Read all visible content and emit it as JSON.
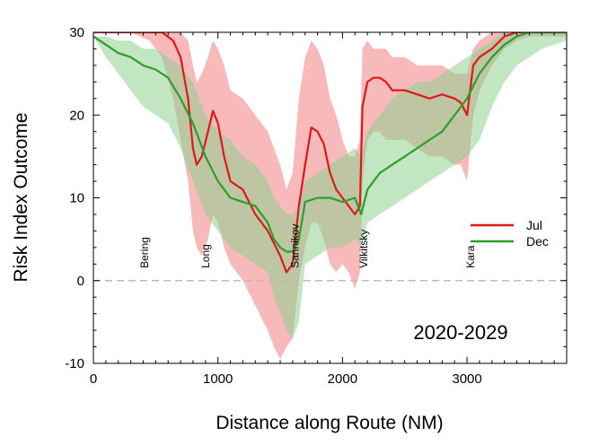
{
  "chart_data": {
    "type": "line",
    "xlabel": "Distance along Route (NM)",
    "ylabel": "Risk Index Outcome",
    "xlim": [
      0,
      3800
    ],
    "ylim": [
      -10,
      30
    ],
    "xticks": [
      0,
      1000,
      2000,
      3000
    ],
    "yticks": [
      -10,
      0,
      10,
      20,
      30
    ],
    "grid": false,
    "legend_position": "right",
    "annotation": "2020-2029",
    "reference_line": {
      "y": 0,
      "style": "dashed",
      "color": "#bbbbbb"
    },
    "places": [
      {
        "name": "Bering",
        "x": 410
      },
      {
        "name": "Long",
        "x": 900
      },
      {
        "name": "Sannikov",
        "x": 1620
      },
      {
        "name": "Vilkitsky",
        "x": 2170
      },
      {
        "name": "Kara",
        "x": 3030
      }
    ],
    "series": [
      {
        "name": "Jul",
        "color": "#dd1a1a",
        "band_color": "#f08080",
        "x": [
          0,
          300,
          450,
          550,
          640,
          700,
          760,
          800,
          830,
          870,
          920,
          960,
          1000,
          1050,
          1100,
          1200,
          1300,
          1400,
          1450,
          1500,
          1550,
          1600,
          1650,
          1700,
          1750,
          1800,
          1850,
          1900,
          1950,
          2000,
          2050,
          2100,
          2140,
          2160,
          2200,
          2250,
          2300,
          2350,
          2400,
          2500,
          2600,
          2700,
          2800,
          2900,
          2950,
          3000,
          3050,
          3100,
          3200,
          3300,
          3400,
          3500,
          3600,
          3700,
          3800
        ],
        "values": [
          30,
          30,
          30,
          30,
          29,
          27,
          22,
          16,
          14,
          15,
          18,
          20.5,
          19,
          15,
          12,
          11,
          8,
          6,
          4.5,
          3,
          1,
          2,
          9,
          14,
          18.5,
          18,
          16.5,
          13,
          11,
          10,
          9,
          8,
          9,
          21,
          24,
          24.5,
          24.5,
          24,
          23,
          23,
          22.5,
          22,
          22.5,
          22,
          21.5,
          20,
          26,
          27,
          28,
          29.5,
          30,
          30,
          30,
          30,
          30
        ],
        "upper": [
          30,
          30,
          30,
          30,
          30,
          30,
          29,
          26,
          24,
          25,
          27,
          29,
          28,
          26,
          23,
          22,
          20,
          18,
          16,
          14,
          11,
          13,
          22,
          27,
          29,
          28,
          26,
          22,
          20,
          17,
          15,
          15,
          17,
          28,
          29,
          28,
          28,
          28,
          27,
          27,
          26,
          26,
          26,
          25,
          25,
          25,
          28,
          29,
          30,
          30,
          30,
          30,
          30,
          30,
          30
        ],
        "lower": [
          30,
          30,
          29,
          27,
          22,
          17,
          12,
          6,
          4,
          3,
          5,
          8,
          7,
          4,
          2,
          0,
          -3,
          -6,
          -8,
          -9.5,
          -8,
          -7,
          0,
          4,
          7,
          7,
          5,
          2,
          1,
          2,
          1,
          -1,
          1,
          12,
          17,
          18,
          18,
          17,
          17,
          17,
          16,
          15,
          15,
          14,
          14,
          12,
          20,
          23,
          26,
          28,
          29,
          29.5,
          29.5,
          29.5,
          29.5
        ]
      },
      {
        "name": "Dec",
        "color": "#2aa02a",
        "band_color": "#8fd08f",
        "x": [
          0,
          100,
          200,
          300,
          400,
          500,
          600,
          700,
          800,
          900,
          1000,
          1100,
          1200,
          1300,
          1400,
          1450,
          1500,
          1550,
          1600,
          1650,
          1700,
          1800,
          1900,
          2000,
          2100,
          2150,
          2200,
          2300,
          2400,
          2500,
          2600,
          2700,
          2800,
          2900,
          3000,
          3100,
          3200,
          3300,
          3400,
          3500,
          3600,
          3700,
          3800
        ],
        "values": [
          29.5,
          28.5,
          27.5,
          27,
          26,
          25.5,
          24.5,
          22,
          19,
          15,
          12,
          10,
          9.5,
          9,
          7,
          5,
          4,
          3.5,
          3.5,
          5,
          9.5,
          10,
          10,
          9.5,
          10,
          8,
          11,
          13,
          14,
          15,
          16,
          17,
          18,
          20,
          22,
          25,
          27,
          28.5,
          29.5,
          30,
          30,
          30,
          30
        ],
        "upper": [
          29.5,
          29.5,
          29,
          29,
          28,
          28,
          27,
          26,
          24,
          20,
          18,
          17,
          15,
          14,
          12,
          10,
          9,
          8,
          8,
          9,
          12,
          13,
          14,
          15,
          16,
          15,
          18,
          20,
          22,
          23,
          24,
          24,
          25,
          26,
          27,
          28,
          29,
          30,
          30,
          30,
          30,
          30,
          30
        ],
        "lower": [
          29.5,
          27,
          25,
          23,
          21,
          20,
          19,
          16,
          12,
          8,
          6,
          4,
          3,
          2,
          1,
          -2,
          -4,
          -6,
          -7,
          -5,
          2,
          3,
          4,
          4,
          5,
          4,
          7,
          8,
          9,
          10,
          11,
          12,
          13,
          14,
          15,
          17,
          21,
          24,
          26,
          27,
          28,
          28.5,
          29
        ]
      }
    ]
  }
}
